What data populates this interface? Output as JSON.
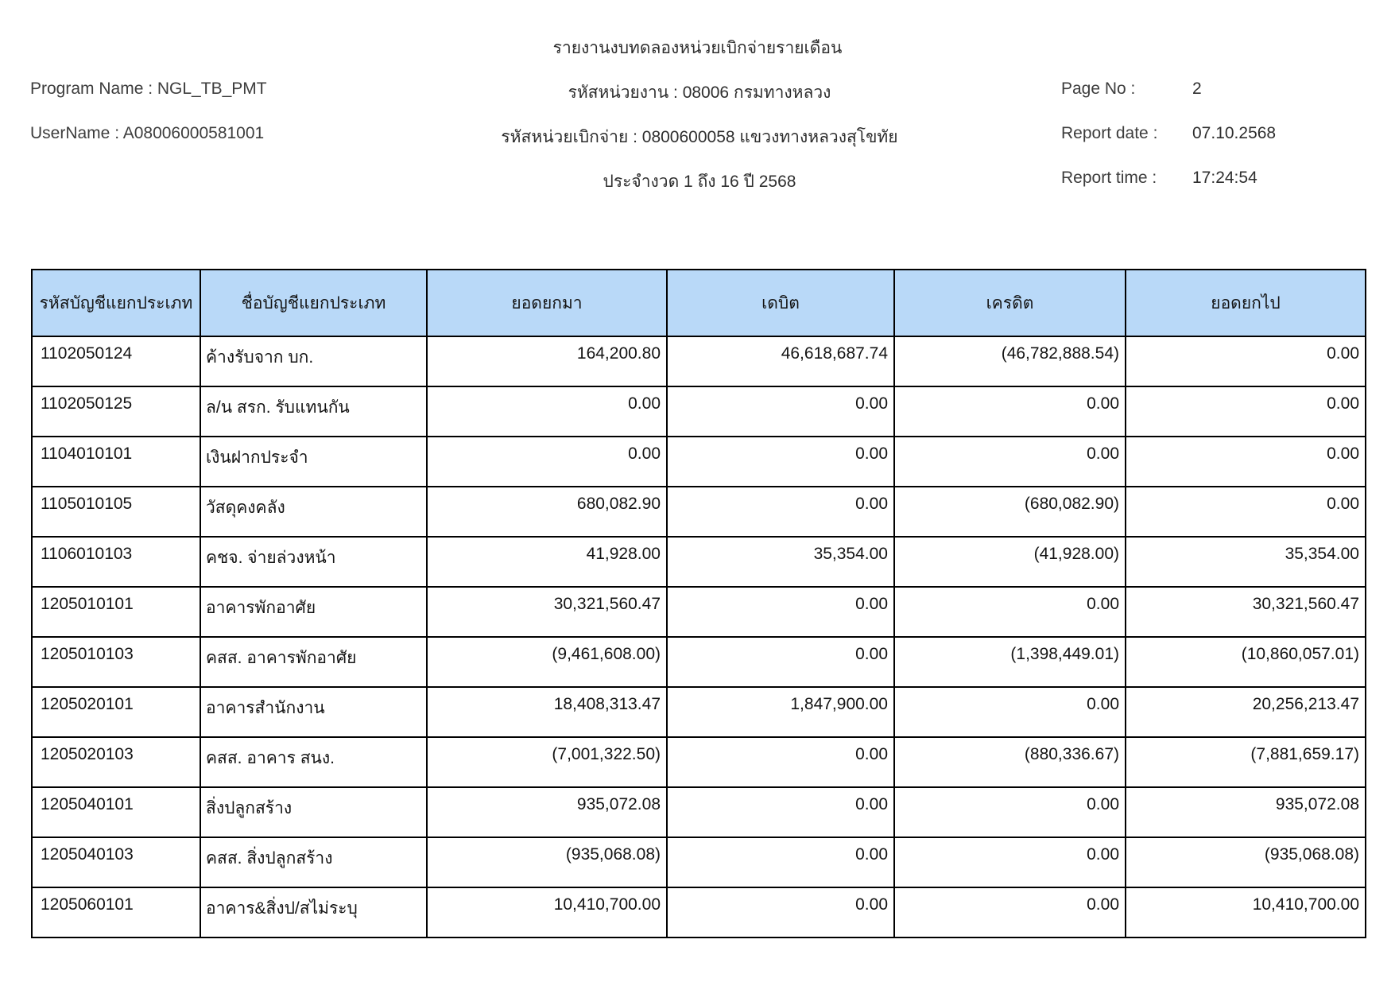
{
  "header": {
    "title": "รายงานงบทดลองหน่วยเบิกจ่ายรายเดือน",
    "program_name": "Program Name : NGL_TB_PMT",
    "username": "UserName : A08006000581001",
    "agency": "รหัสหน่วยงาน : 08006 กรมทางหลวง",
    "disburse_unit": "รหัสหน่วยเบิกจ่าย : 0800600058 แขวงทางหลวงสุโขทัย",
    "period": "ประจำงวด 1 ถึง 16 ปี 2568",
    "page_no_label": "Page No :",
    "page_no": "2",
    "report_date_label": "Report date :",
    "report_date": "07.10.2568",
    "report_time_label": "Report time :",
    "report_time": "17:24:54"
  },
  "colors": {
    "table_header_bg": "#b9d9f8",
    "table_border": "#000000"
  },
  "table": {
    "columns": [
      "รหัสบัญชีแยกประเภท",
      "ชื่อบัญชีแยกประเภท",
      "ยอดยกมา",
      "เดบิต",
      "เครดิต",
      "ยอดยกไป"
    ],
    "rows": [
      [
        "1102050124",
        "ค้างรับจาก บก.",
        "164,200.80",
        "46,618,687.74",
        "(46,782,888.54)",
        "0.00"
      ],
      [
        "1102050125",
        "ล/น สรก. รับแทนกัน",
        "0.00",
        "0.00",
        "0.00",
        "0.00"
      ],
      [
        "1104010101",
        "เงินฝากประจำ",
        "0.00",
        "0.00",
        "0.00",
        "0.00"
      ],
      [
        "1105010105",
        "วัสดุคงคลัง",
        "680,082.90",
        "0.00",
        "(680,082.90)",
        "0.00"
      ],
      [
        "1106010103",
        "คชจ. จ่ายล่วงหน้า",
        "41,928.00",
        "35,354.00",
        "(41,928.00)",
        "35,354.00"
      ],
      [
        "1205010101",
        "อาคารพักอาศัย",
        "30,321,560.47",
        "0.00",
        "0.00",
        "30,321,560.47"
      ],
      [
        "1205010103",
        "คสส. อาคารพักอาศัย",
        "(9,461,608.00)",
        "0.00",
        "(1,398,449.01)",
        "(10,860,057.01)"
      ],
      [
        "1205020101",
        "อาคารสำนักงาน",
        "18,408,313.47",
        "1,847,900.00",
        "0.00",
        "20,256,213.47"
      ],
      [
        "1205020103",
        "คสส. อาคาร สนง.",
        "(7,001,322.50)",
        "0.00",
        "(880,336.67)",
        "(7,881,659.17)"
      ],
      [
        "1205040101",
        "สิ่งปลูกสร้าง",
        "935,072.08",
        "0.00",
        "0.00",
        "935,072.08"
      ],
      [
        "1205040103",
        "คสส. สิ่งปลูกสร้าง",
        "(935,068.08)",
        "0.00",
        "0.00",
        "(935,068.08)"
      ],
      [
        "1205060101",
        "อาคาร&สิ่งป/สไม่ระบุ",
        "10,410,700.00",
        "0.00",
        "0.00",
        "10,410,700.00"
      ]
    ]
  }
}
